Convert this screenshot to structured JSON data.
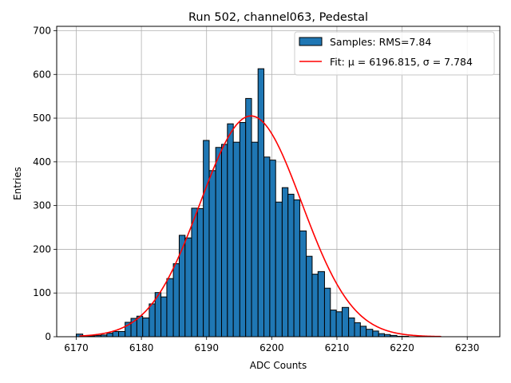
{
  "chart_data": {
    "type": "bar",
    "title": "Run 502, channel063, Pedestal",
    "xlabel": "ADC Counts",
    "ylabel": "Entries",
    "xlim": [
      6167,
      6235
    ],
    "ylim": [
      0,
      710
    ],
    "xticks": [
      6170,
      6180,
      6190,
      6200,
      6210,
      6220,
      6230
    ],
    "yticks": [
      0,
      100,
      200,
      300,
      400,
      500,
      600,
      700
    ],
    "grid": true,
    "legend_position": "top-right",
    "histogram": {
      "name": "Samples: RMS=7.84",
      "color": "#1f77b4",
      "edge_color": "#000000",
      "bins": [
        [
          6170.0,
          6171.0,
          6
        ],
        [
          6171.0,
          6171.9,
          2
        ],
        [
          6171.9,
          6172.8,
          2
        ],
        [
          6172.8,
          6173.8,
          3
        ],
        [
          6173.8,
          6174.7,
          4
        ],
        [
          6174.7,
          6175.6,
          8
        ],
        [
          6175.6,
          6176.5,
          12
        ],
        [
          6176.5,
          6177.5,
          12
        ],
        [
          6177.5,
          6178.4,
          33
        ],
        [
          6178.4,
          6179.3,
          42
        ],
        [
          6179.3,
          6180.2,
          47
        ],
        [
          6180.2,
          6181.2,
          43
        ],
        [
          6181.2,
          6182.1,
          75
        ],
        [
          6182.1,
          6183.0,
          101
        ],
        [
          6183.0,
          6183.9,
          91
        ],
        [
          6183.9,
          6184.9,
          133
        ],
        [
          6184.9,
          6185.8,
          167
        ],
        [
          6185.8,
          6186.7,
          232
        ],
        [
          6186.7,
          6187.7,
          226
        ],
        [
          6187.7,
          6188.6,
          294
        ],
        [
          6188.6,
          6189.5,
          293
        ],
        [
          6189.5,
          6190.4,
          449
        ],
        [
          6190.4,
          6191.4,
          380
        ],
        [
          6191.4,
          6192.3,
          433
        ],
        [
          6192.3,
          6193.2,
          440
        ],
        [
          6193.2,
          6194.1,
          487
        ],
        [
          6194.1,
          6195.1,
          445
        ],
        [
          6195.1,
          6196.0,
          490
        ],
        [
          6196.0,
          6196.9,
          545
        ],
        [
          6196.9,
          6197.9,
          445
        ],
        [
          6197.9,
          6198.8,
          613
        ],
        [
          6198.8,
          6199.7,
          411
        ],
        [
          6199.7,
          6200.6,
          404
        ],
        [
          6200.6,
          6201.6,
          308
        ],
        [
          6201.6,
          6202.5,
          341
        ],
        [
          6202.5,
          6203.4,
          326
        ],
        [
          6203.4,
          6204.3,
          313
        ],
        [
          6204.3,
          6205.3,
          242
        ],
        [
          6205.3,
          6206.2,
          184
        ],
        [
          6206.2,
          6207.1,
          143
        ],
        [
          6207.1,
          6208.1,
          149
        ],
        [
          6208.1,
          6209.0,
          111
        ],
        [
          6209.0,
          6209.9,
          61
        ],
        [
          6209.9,
          6210.8,
          57
        ],
        [
          6210.8,
          6211.8,
          67
        ],
        [
          6211.8,
          6212.7,
          43
        ],
        [
          6212.7,
          6213.6,
          32
        ],
        [
          6213.6,
          6214.5,
          24
        ],
        [
          6214.5,
          6215.5,
          17
        ],
        [
          6215.5,
          6216.4,
          13
        ],
        [
          6216.4,
          6217.3,
          7
        ],
        [
          6217.3,
          6218.2,
          5
        ],
        [
          6218.2,
          6219.2,
          3
        ],
        [
          6219.2,
          6220.1,
          1
        ],
        [
          6220.1,
          6221.0,
          1
        ]
      ]
    },
    "fit": {
      "name": "Fit: μ = 6196.815, σ = 7.784",
      "type": "gaussian",
      "mu": 6196.815,
      "sigma": 7.784,
      "amplitude": 505,
      "x_range": [
        6170.5,
        6226
      ],
      "color": "#ff0000"
    }
  }
}
